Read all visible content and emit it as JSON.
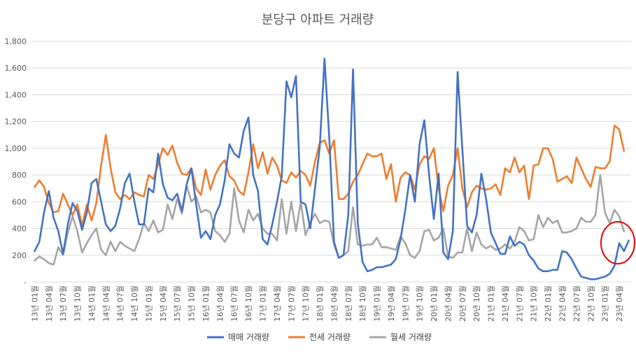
{
  "chart_data": {
    "type": "line",
    "title": "분당구 아파트 거래량",
    "xlabel": "",
    "ylabel": "",
    "ylim": [
      0,
      1800
    ],
    "y_ticks": [
      "-",
      "200",
      "400",
      "600",
      "800",
      "1,000",
      "1,200",
      "1,400",
      "1,600",
      "1,800"
    ],
    "x_tick_labels": [
      "13년 01월",
      "13년 04월",
      "13년 07월",
      "13년 10월",
      "14년 01월",
      "14년 04월",
      "14년 07월",
      "14년 10월",
      "15년 01월",
      "15년 04월",
      "15년 07월",
      "15년 10월",
      "16년 01월",
      "16년 04월",
      "16년 07월",
      "16년 10월",
      "17년 01월",
      "17년 04월",
      "17년 07월",
      "17년 10월",
      "18년 01월",
      "18년 04월",
      "18년 07월",
      "18년 10월",
      "19년 01월",
      "19년 04월",
      "19년 07월",
      "19년 10월",
      "20년 01월",
      "20년 04월",
      "20년 07월",
      "20년 10월",
      "21년 01월",
      "21년 04월",
      "21년 07월",
      "21년 10월",
      "22년 01월",
      "22년 04월",
      "22년 07월",
      "22년 10월",
      "23년 01월",
      "23년 04월"
    ],
    "grid": true,
    "legend_position": "bottom",
    "series": [
      {
        "name": "매매 거래량",
        "color": "#4472C4",
        "values": [
          230,
          300,
          520,
          680,
          480,
          380,
          210,
          430,
          590,
          530,
          390,
          520,
          740,
          770,
          600,
          430,
          380,
          420,
          550,
          740,
          810,
          600,
          430,
          430,
          700,
          670,
          960,
          730,
          630,
          610,
          660,
          530,
          730,
          850,
          580,
          330,
          380,
          320,
          500,
          580,
          760,
          1030,
          960,
          930,
          1130,
          1230,
          800,
          680,
          320,
          280,
          430,
          600,
          790,
          1500,
          1380,
          1540,
          600,
          580,
          400,
          700,
          1010,
          1670,
          1080,
          300,
          180,
          200,
          500,
          1590,
          440,
          150,
          80,
          90,
          110,
          110,
          120,
          130,
          170,
          320,
          540,
          800,
          600,
          1030,
          1210,
          800,
          470,
          810,
          220,
          170,
          380,
          1570,
          990,
          420,
          370,
          500,
          810,
          620,
          370,
          290,
          210,
          210,
          340,
          270,
          300,
          280,
          200,
          160,
          100,
          80,
          80,
          90,
          90,
          230,
          220,
          170,
          100,
          40,
          30,
          20,
          20,
          30,
          40,
          60,
          120,
          290,
          230,
          310
        ],
        "markers": false
      },
      {
        "name": "전세 거래량",
        "color": "#ED7D31",
        "values": [
          710,
          760,
          710,
          590,
          520,
          530,
          660,
          580,
          500,
          580,
          420,
          580,
          460,
          590,
          870,
          1100,
          850,
          670,
          620,
          650,
          620,
          670,
          650,
          640,
          800,
          770,
          880,
          1000,
          950,
          1020,
          890,
          810,
          800,
          850,
          700,
          650,
          840,
          690,
          800,
          870,
          910,
          790,
          760,
          680,
          650,
          820,
          1030,
          850,
          970,
          810,
          930,
          870,
          760,
          740,
          820,
          780,
          830,
          800,
          720,
          900,
          1040,
          1060,
          960,
          1060,
          620,
          620,
          660,
          750,
          800,
          880,
          960,
          940,
          940,
          960,
          770,
          880,
          600,
          780,
          820,
          800,
          690,
          880,
          940,
          920,
          1000,
          700,
          530,
          720,
          800,
          1000,
          700,
          560,
          670,
          720,
          700,
          690,
          700,
          730,
          650,
          850,
          820,
          930,
          820,
          870,
          620,
          870,
          880,
          1000,
          1000,
          920,
          750,
          770,
          790,
          740,
          930,
          850,
          770,
          710,
          860,
          850,
          850,
          900,
          1170,
          1140,
          980
        ],
        "markers": false
      },
      {
        "name": "월세 거래량",
        "color": "#A5A5A5",
        "values": [
          160,
          190,
          170,
          140,
          130,
          260,
          200,
          370,
          490,
          380,
          220,
          290,
          350,
          400,
          240,
          200,
          300,
          230,
          300,
          270,
          250,
          230,
          320,
          440,
          380,
          460,
          370,
          390,
          580,
          470,
          620,
          510,
          720,
          600,
          640,
          520,
          540,
          520,
          380,
          350,
          300,
          360,
          700,
          460,
          370,
          540,
          460,
          510,
          400,
          360,
          360,
          310,
          620,
          360,
          600,
          380,
          600,
          350,
          440,
          510,
          440,
          460,
          450,
          280,
          180,
          200,
          230,
          560,
          280,
          270,
          280,
          280,
          330,
          260,
          260,
          250,
          240,
          340,
          290,
          200,
          180,
          230,
          380,
          390,
          310,
          330,
          400,
          190,
          180,
          220,
          220,
          400,
          230,
          370,
          280,
          250,
          270,
          240,
          250,
          280,
          250,
          300,
          410,
          380,
          310,
          320,
          500,
          410,
          480,
          440,
          460,
          370,
          370,
          380,
          400,
          480,
          450,
          450,
          500,
          800,
          520,
          440,
          540,
          490,
          380
        ]
      }
    ]
  }
}
